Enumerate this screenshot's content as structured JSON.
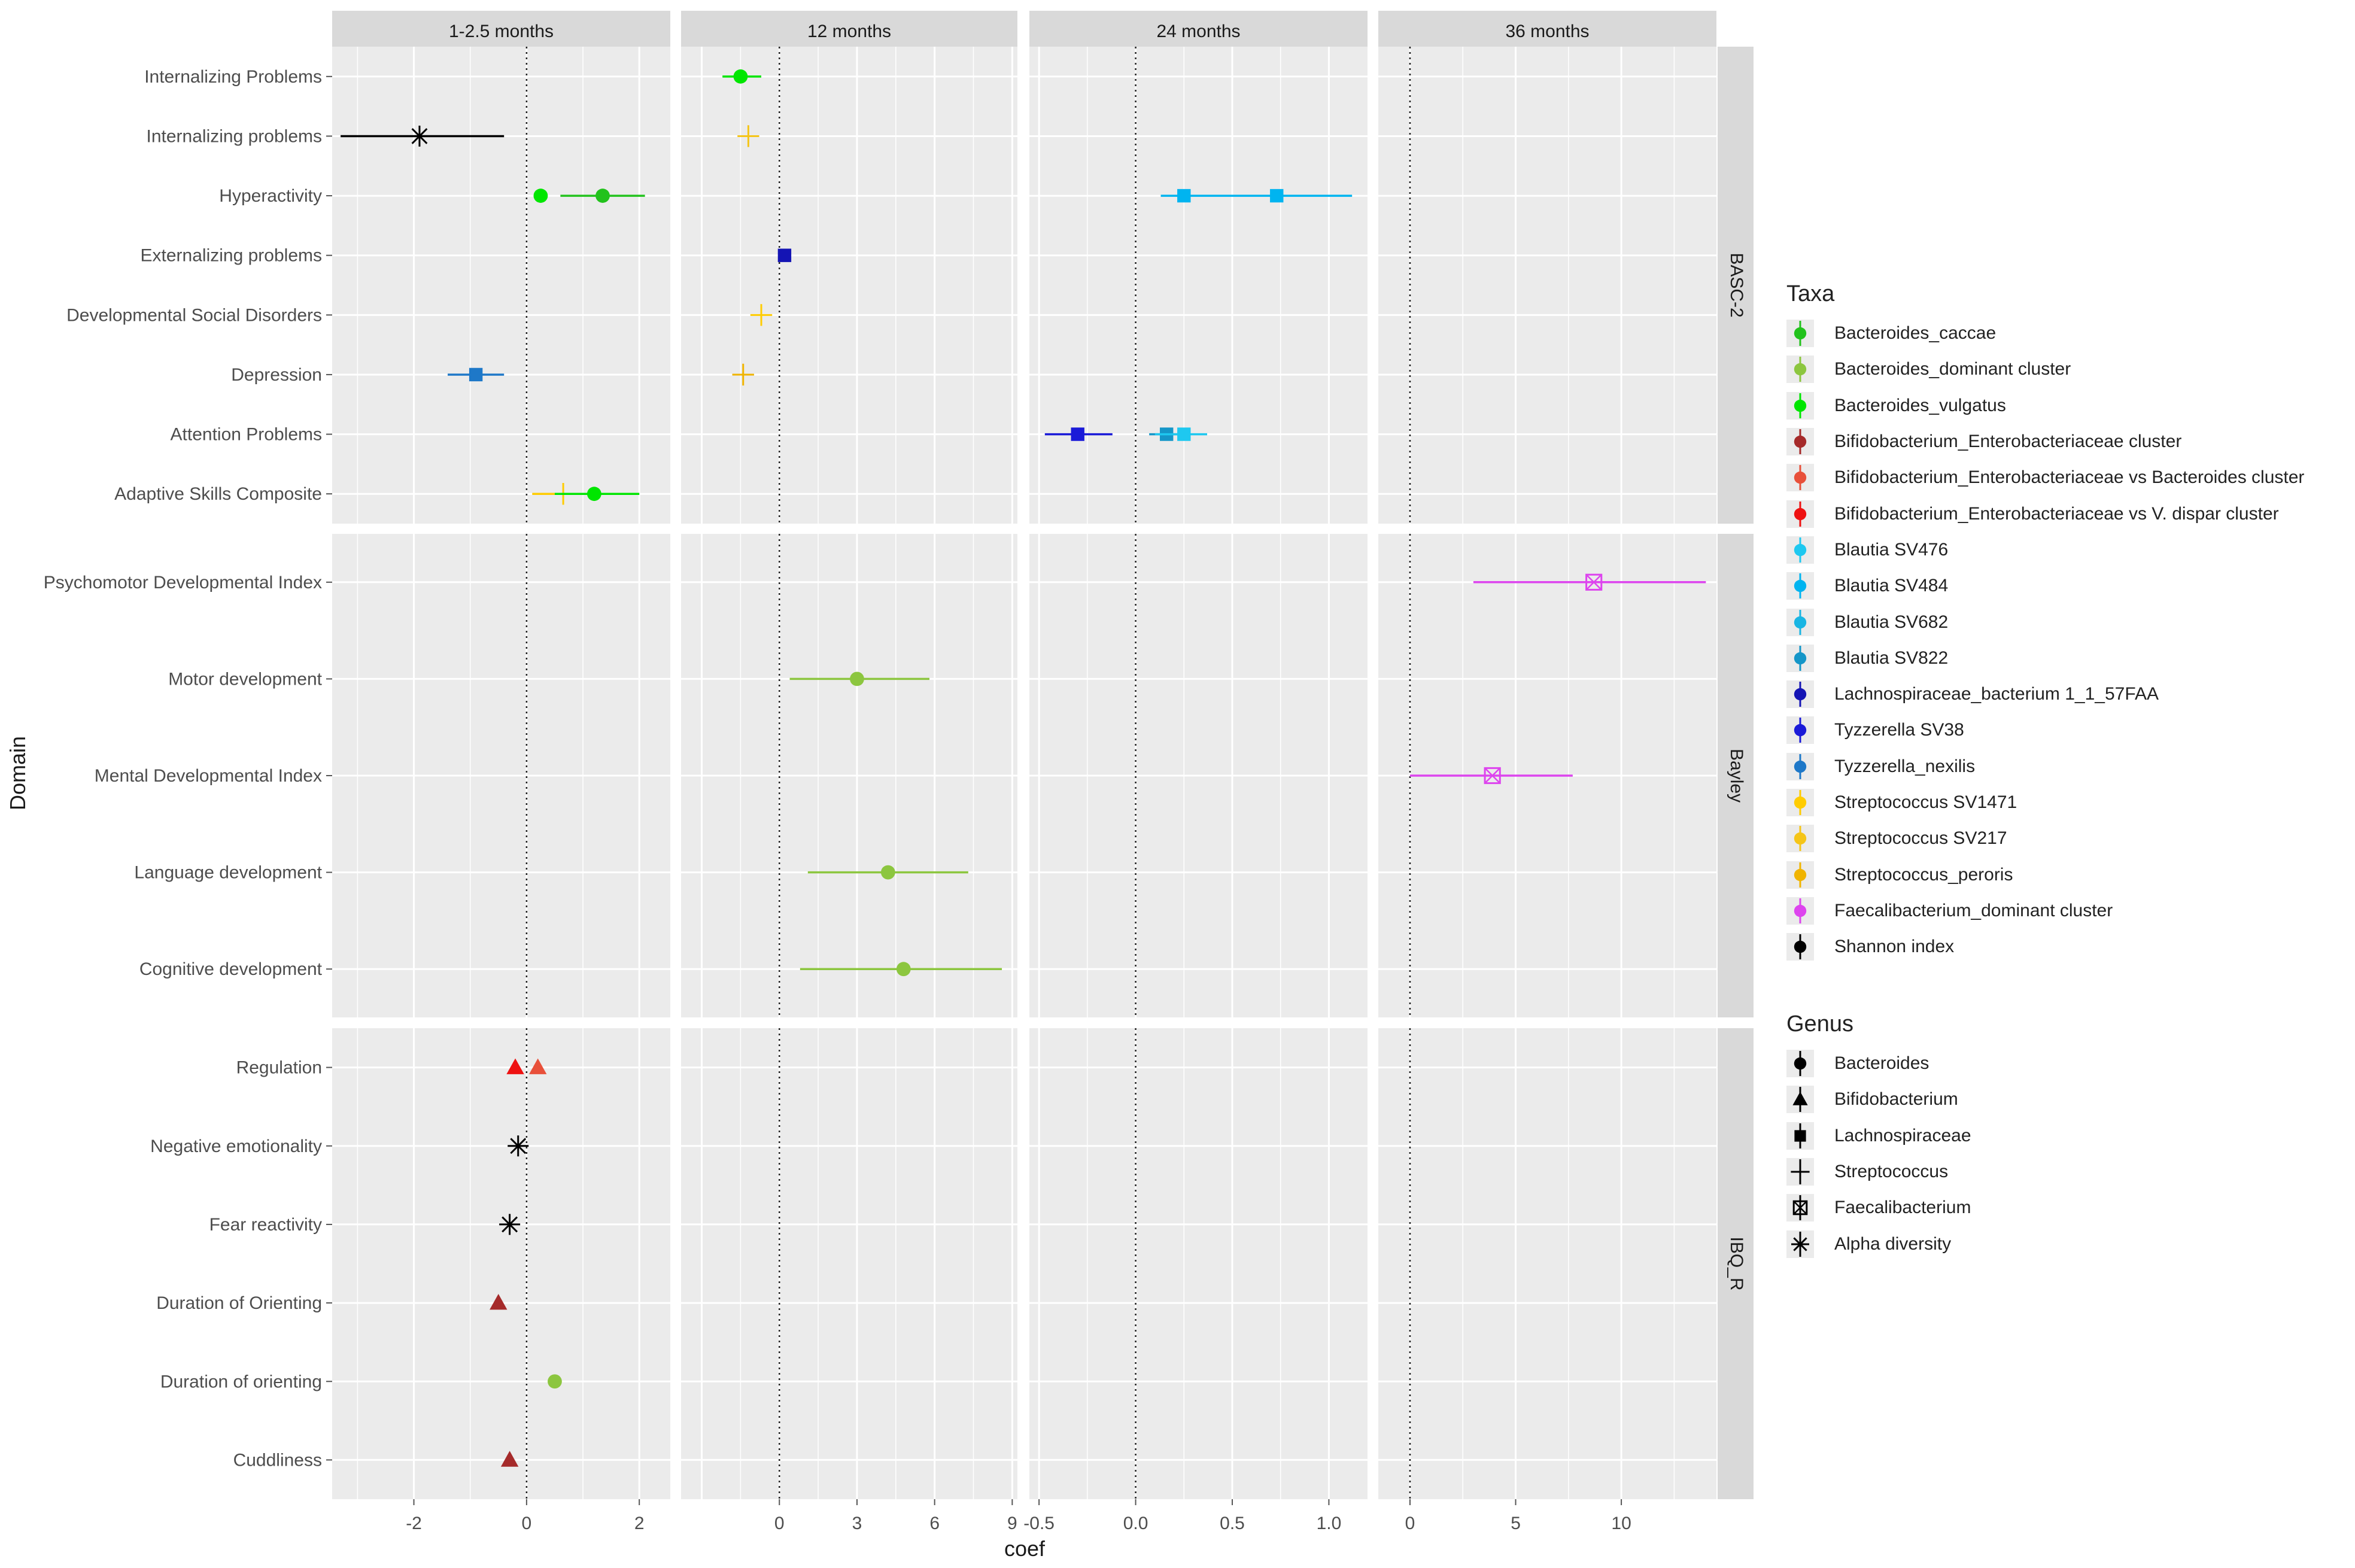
{
  "chart_data": {
    "type": "scatter",
    "title": "",
    "xlabel": "coef",
    "ylabel": "Domain",
    "facet_columns": [
      {
        "label": "1-2.5 months",
        "xlim": [
          -3.45,
          2.55
        ],
        "ticks": [
          -2,
          0,
          2
        ],
        "tick_labels": [
          "-2",
          "0",
          "2"
        ]
      },
      {
        "label": "12 months",
        "xlim": [
          -3.8,
          9.2
        ],
        "ticks": [
          0,
          3,
          6,
          9
        ],
        "tick_labels": [
          "0",
          "3",
          "6",
          "9"
        ]
      },
      {
        "label": "24 months",
        "xlim": [
          -0.55,
          1.2
        ],
        "ticks": [
          -0.5,
          0,
          0.5,
          1
        ],
        "tick_labels": [
          "-0.5",
          "0.0",
          "0.5",
          "1.0"
        ]
      },
      {
        "label": "36 months",
        "xlim": [
          -1.5,
          14.5
        ],
        "ticks": [
          0,
          5,
          10
        ],
        "tick_labels": [
          "0",
          "5",
          "10"
        ]
      }
    ],
    "facet_rows": [
      {
        "label": "BASC-2",
        "categories": [
          "Internalizing Problems",
          "Internalizing problems",
          "Hyperactivity",
          "Externalizing  problems",
          "Developmental Social Disorders",
          "Depression",
          "Attention Problems",
          "Adaptive Skills Composite"
        ]
      },
      {
        "label": "Bayley",
        "categories": [
          "Psychomotor Developmental Index",
          "Motor development",
          "Mental Developmental Index",
          "Language development",
          "Cognitive development"
        ]
      },
      {
        "label": "IBQ_R",
        "categories": [
          "Regulation",
          "Negative emotionality",
          "Fear reactivity",
          "Duration of Orienting",
          "Duration of orienting",
          "Cuddliness"
        ]
      }
    ],
    "points": [
      {
        "row": 0,
        "col": 1,
        "y": "Internalizing Problems",
        "taxon": "Bacteroides_vulgatus",
        "coef": -1.5,
        "lo": -2.2,
        "hi": -0.7
      },
      {
        "row": 0,
        "col": 0,
        "y": "Internalizing problems",
        "taxon": "Shannon index",
        "coef": -1.9,
        "lo": -3.3,
        "hi": -0.4
      },
      {
        "row": 0,
        "col": 1,
        "y": "Internalizing problems",
        "taxon": "Streptococcus SV217",
        "coef": -1.2,
        "lo": -1.2,
        "hi": -1.2
      },
      {
        "row": 0,
        "col": 0,
        "y": "Hyperactivity",
        "taxon": "Bacteroides_vulgatus",
        "coef": 0.25,
        "lo": 0.25,
        "hi": 0.25
      },
      {
        "row": 0,
        "col": 0,
        "y": "Hyperactivity",
        "taxon": "Bacteroides_caccae",
        "coef": 1.35,
        "lo": 0.6,
        "hi": 2.1
      },
      {
        "row": 0,
        "col": 2,
        "y": "Hyperactivity",
        "taxon": "Blautia SV484",
        "coef": 0.25,
        "lo": 0.13,
        "hi": 1.12
      },
      {
        "row": 0,
        "col": 2,
        "y": "Hyperactivity",
        "taxon": "Blautia SV484",
        "coef": 0.73,
        "lo": 0.73,
        "hi": 0.73
      },
      {
        "row": 0,
        "col": 1,
        "y": "Externalizing  problems",
        "taxon": "Lachnospiraceae_bacterium 1_1_57FAA",
        "coef": 0.2,
        "lo": 0.2,
        "hi": 0.2
      },
      {
        "row": 0,
        "col": 1,
        "y": "Developmental Social Disorders",
        "taxon": "Streptococcus SV1471",
        "coef": -0.7,
        "lo": -0.7,
        "hi": -0.7
      },
      {
        "row": 0,
        "col": 0,
        "y": "Depression",
        "taxon": "Tyzzerella_nexilis",
        "coef": -0.9,
        "lo": -1.4,
        "hi": -0.4
      },
      {
        "row": 0,
        "col": 1,
        "y": "Depression",
        "taxon": "Streptococcus_peroris",
        "coef": -1.4,
        "lo": -1.4,
        "hi": -1.4
      },
      {
        "row": 0,
        "col": 2,
        "y": "Attention Problems",
        "taxon": "Tyzzerella SV38",
        "coef": -0.3,
        "lo": -0.47,
        "hi": -0.12
      },
      {
        "row": 0,
        "col": 2,
        "y": "Attention Problems",
        "taxon": "Blautia SV822",
        "coef": 0.16,
        "lo": 0.07,
        "hi": 0.25
      },
      {
        "row": 0,
        "col": 2,
        "y": "Attention Problems",
        "taxon": "Blautia SV476",
        "coef": 0.25,
        "lo": 0.1,
        "hi": 0.37
      },
      {
        "row": 0,
        "col": 0,
        "y": "Adaptive Skills Composite",
        "taxon": "Streptococcus SV1471",
        "coef": 0.65,
        "lo": 0.1,
        "hi": 1.3
      },
      {
        "row": 0,
        "col": 0,
        "y": "Adaptive Skills Composite",
        "taxon": "Bacteroides_vulgatus",
        "coef": 1.2,
        "lo": 0.5,
        "hi": 2.0
      },
      {
        "row": 1,
        "col": 3,
        "y": "Psychomotor Developmental Index",
        "taxon": "Faecalibacterium_dominant cluster",
        "coef": 8.7,
        "lo": 3.0,
        "hi": 14.0
      },
      {
        "row": 1,
        "col": 1,
        "y": "Motor development",
        "taxon": "Bacteroides_dominant cluster",
        "coef": 3.0,
        "lo": 0.4,
        "hi": 5.8
      },
      {
        "row": 1,
        "col": 3,
        "y": "Mental Developmental Index",
        "taxon": "Faecalibacterium_dominant cluster",
        "coef": 3.9,
        "lo": 0.0,
        "hi": 7.7
      },
      {
        "row": 1,
        "col": 1,
        "y": "Language development",
        "taxon": "Bacteroides_dominant cluster",
        "coef": 4.2,
        "lo": 1.1,
        "hi": 7.3
      },
      {
        "row": 1,
        "col": 1,
        "y": "Cognitive development",
        "taxon": "Bacteroides_dominant cluster",
        "coef": 4.8,
        "lo": 0.8,
        "hi": 8.6
      },
      {
        "row": 2,
        "col": 0,
        "y": "Regulation",
        "taxon": "Bifidobacterium_Enterobacteriaceae vs V. dispar cluster",
        "coef": -0.2,
        "lo": -0.2,
        "hi": -0.2
      },
      {
        "row": 2,
        "col": 0,
        "y": "Regulation",
        "taxon": "Bifidobacterium_Enterobacteriaceae vs Bacteroides cluster",
        "coef": 0.2,
        "lo": 0.2,
        "hi": 0.2
      },
      {
        "row": 2,
        "col": 0,
        "y": "Negative emotionality",
        "taxon": "Shannon index",
        "coef": -0.15,
        "lo": -0.15,
        "hi": -0.15
      },
      {
        "row": 2,
        "col": 0,
        "y": "Fear reactivity",
        "taxon": "Shannon index",
        "coef": -0.3,
        "lo": -0.3,
        "hi": -0.3
      },
      {
        "row": 2,
        "col": 0,
        "y": "Duration of Orienting",
        "taxon": "Bifidobacterium_Enterobacteriaceae cluster",
        "coef": -0.5,
        "lo": -0.5,
        "hi": -0.5
      },
      {
        "row": 2,
        "col": 0,
        "y": "Duration of orienting",
        "taxon": "Bacteroides_dominant cluster",
        "coef": 0.5,
        "lo": 0.5,
        "hi": 0.5
      },
      {
        "row": 2,
        "col": 0,
        "y": "Cuddliness",
        "taxon": "Bifidobacterium_Enterobacteriaceae cluster",
        "coef": -0.3,
        "lo": -0.3,
        "hi": -0.3
      }
    ],
    "legend_taxa": {
      "title": "Taxa",
      "entries": [
        {
          "name": "Bacteroides_caccae",
          "color": "#22c21c",
          "genus": "Bacteroides"
        },
        {
          "name": "Bacteroides_dominant cluster",
          "color": "#8cc63f",
          "genus": "Bacteroides"
        },
        {
          "name": "Bacteroides_vulgatus",
          "color": "#00e600",
          "genus": "Bacteroides"
        },
        {
          "name": "Bifidobacterium_Enterobacteriaceae cluster",
          "color": "#a52a2a",
          "genus": "Bifidobacterium"
        },
        {
          "name": "Bifidobacterium_Enterobacteriaceae vs Bacteroides cluster",
          "color": "#e8503a",
          "genus": "Bifidobacterium"
        },
        {
          "name": "Bifidobacterium_Enterobacteriaceae vs V. dispar cluster",
          "color": "#ee1111",
          "genus": "Bifidobacterium"
        },
        {
          "name": "Blautia SV476",
          "color": "#1ec8f0",
          "genus": "Lachnospiraceae"
        },
        {
          "name": "Blautia SV484",
          "color": "#00b4f0",
          "genus": "Lachnospiraceae"
        },
        {
          "name": "Blautia SV682",
          "color": "#19b5e3",
          "genus": "Lachnospiraceae"
        },
        {
          "name": "Blautia SV822",
          "color": "#1596c8",
          "genus": "Lachnospiraceae"
        },
        {
          "name": "Lachnospiraceae_bacterium 1_1_57FAA",
          "color": "#1414b4",
          "genus": "Lachnospiraceae"
        },
        {
          "name": "Tyzzerella SV38",
          "color": "#1a1ad8",
          "genus": "Lachnospiraceae"
        },
        {
          "name": "Tyzzerella_nexilis",
          "color": "#1e78c8",
          "genus": "Lachnospiraceae"
        },
        {
          "name": "Streptococcus SV1471",
          "color": "#ffcc00",
          "genus": "Streptococcus"
        },
        {
          "name": "Streptococcus SV217",
          "color": "#f5c518",
          "genus": "Streptococcus"
        },
        {
          "name": "Streptococcus_peroris",
          "color": "#f0b400",
          "genus": "Streptococcus"
        },
        {
          "name": "Faecalibacterium_dominant cluster",
          "color": "#dd44ee",
          "genus": "Faecalibacterium"
        },
        {
          "name": "Shannon index",
          "color": "#000000",
          "genus": "Alpha diversity"
        }
      ]
    },
    "legend_genus": {
      "title": "Genus",
      "entries": [
        {
          "name": "Bacteroides",
          "shape": "circle"
        },
        {
          "name": "Bifidobacterium",
          "shape": "triangle"
        },
        {
          "name": "Lachnospiraceae",
          "shape": "square"
        },
        {
          "name": "Streptococcus",
          "shape": "plus"
        },
        {
          "name": "Faecalibacterium",
          "shape": "square-x"
        },
        {
          "name": "Alpha diversity",
          "shape": "asterisk"
        }
      ]
    }
  }
}
